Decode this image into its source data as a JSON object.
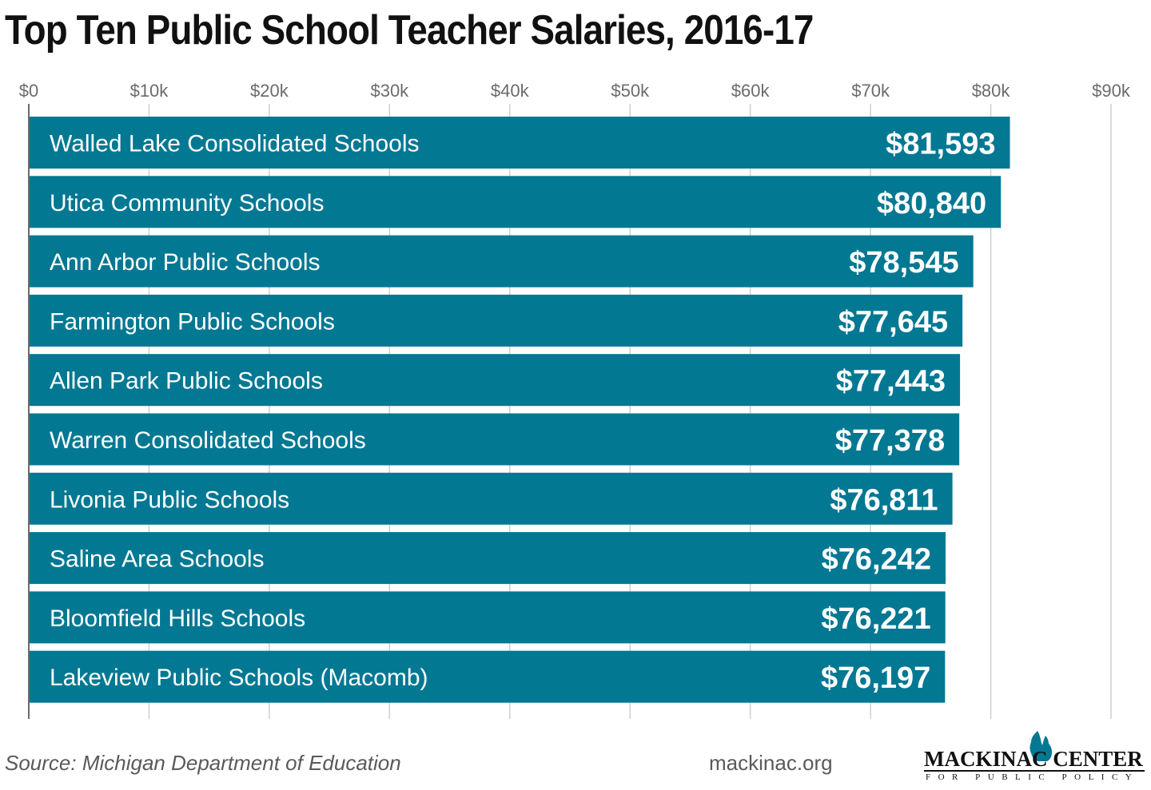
{
  "title": "Top Ten Public School Teacher Salaries, 2016-17",
  "colors": {
    "bar": "#037893",
    "bar_text": "#ffffff",
    "grid": "#cfcfcf",
    "axis": "#6b6b6b",
    "tick_text": "#6b6b6b"
  },
  "chart_data": {
    "type": "bar",
    "orientation": "horizontal",
    "categories": [
      "Walled Lake Consolidated Schools",
      "Utica Community Schools",
      "Ann Arbor Public Schools",
      "Farmington Public Schools",
      "Allen Park Public Schools",
      "Warren Consolidated Schools",
      "Livonia Public Schools",
      "Saline Area Schools",
      "Bloomfield Hills Schools",
      "Lakeview Public Schools (Macomb)"
    ],
    "values": [
      81593,
      80840,
      78545,
      77645,
      77443,
      77378,
      76811,
      76242,
      76221,
      76197
    ],
    "value_labels": [
      "$81,593",
      "$80,840",
      "$78,545",
      "$77,645",
      "$77,443",
      "$77,378",
      "$76,811",
      "$76,242",
      "$76,221",
      "$76,197"
    ],
    "xlim": [
      0,
      90000
    ],
    "xticks": [
      0,
      10000,
      20000,
      30000,
      40000,
      50000,
      60000,
      70000,
      80000,
      90000
    ],
    "xtick_labels": [
      "$0",
      "$10k",
      "$20k",
      "$30k",
      "$40k",
      "$50k",
      "$60k",
      "$70k",
      "$80k",
      "$90k"
    ],
    "axis_position": "top",
    "grid": true,
    "legend": "none"
  },
  "footer": {
    "source": "Source: Michigan Department of Education",
    "site": "mackinac.org"
  },
  "logo": {
    "name": "MACKINAC CENTER",
    "tagline": "FOR PUBLIC POLICY"
  }
}
